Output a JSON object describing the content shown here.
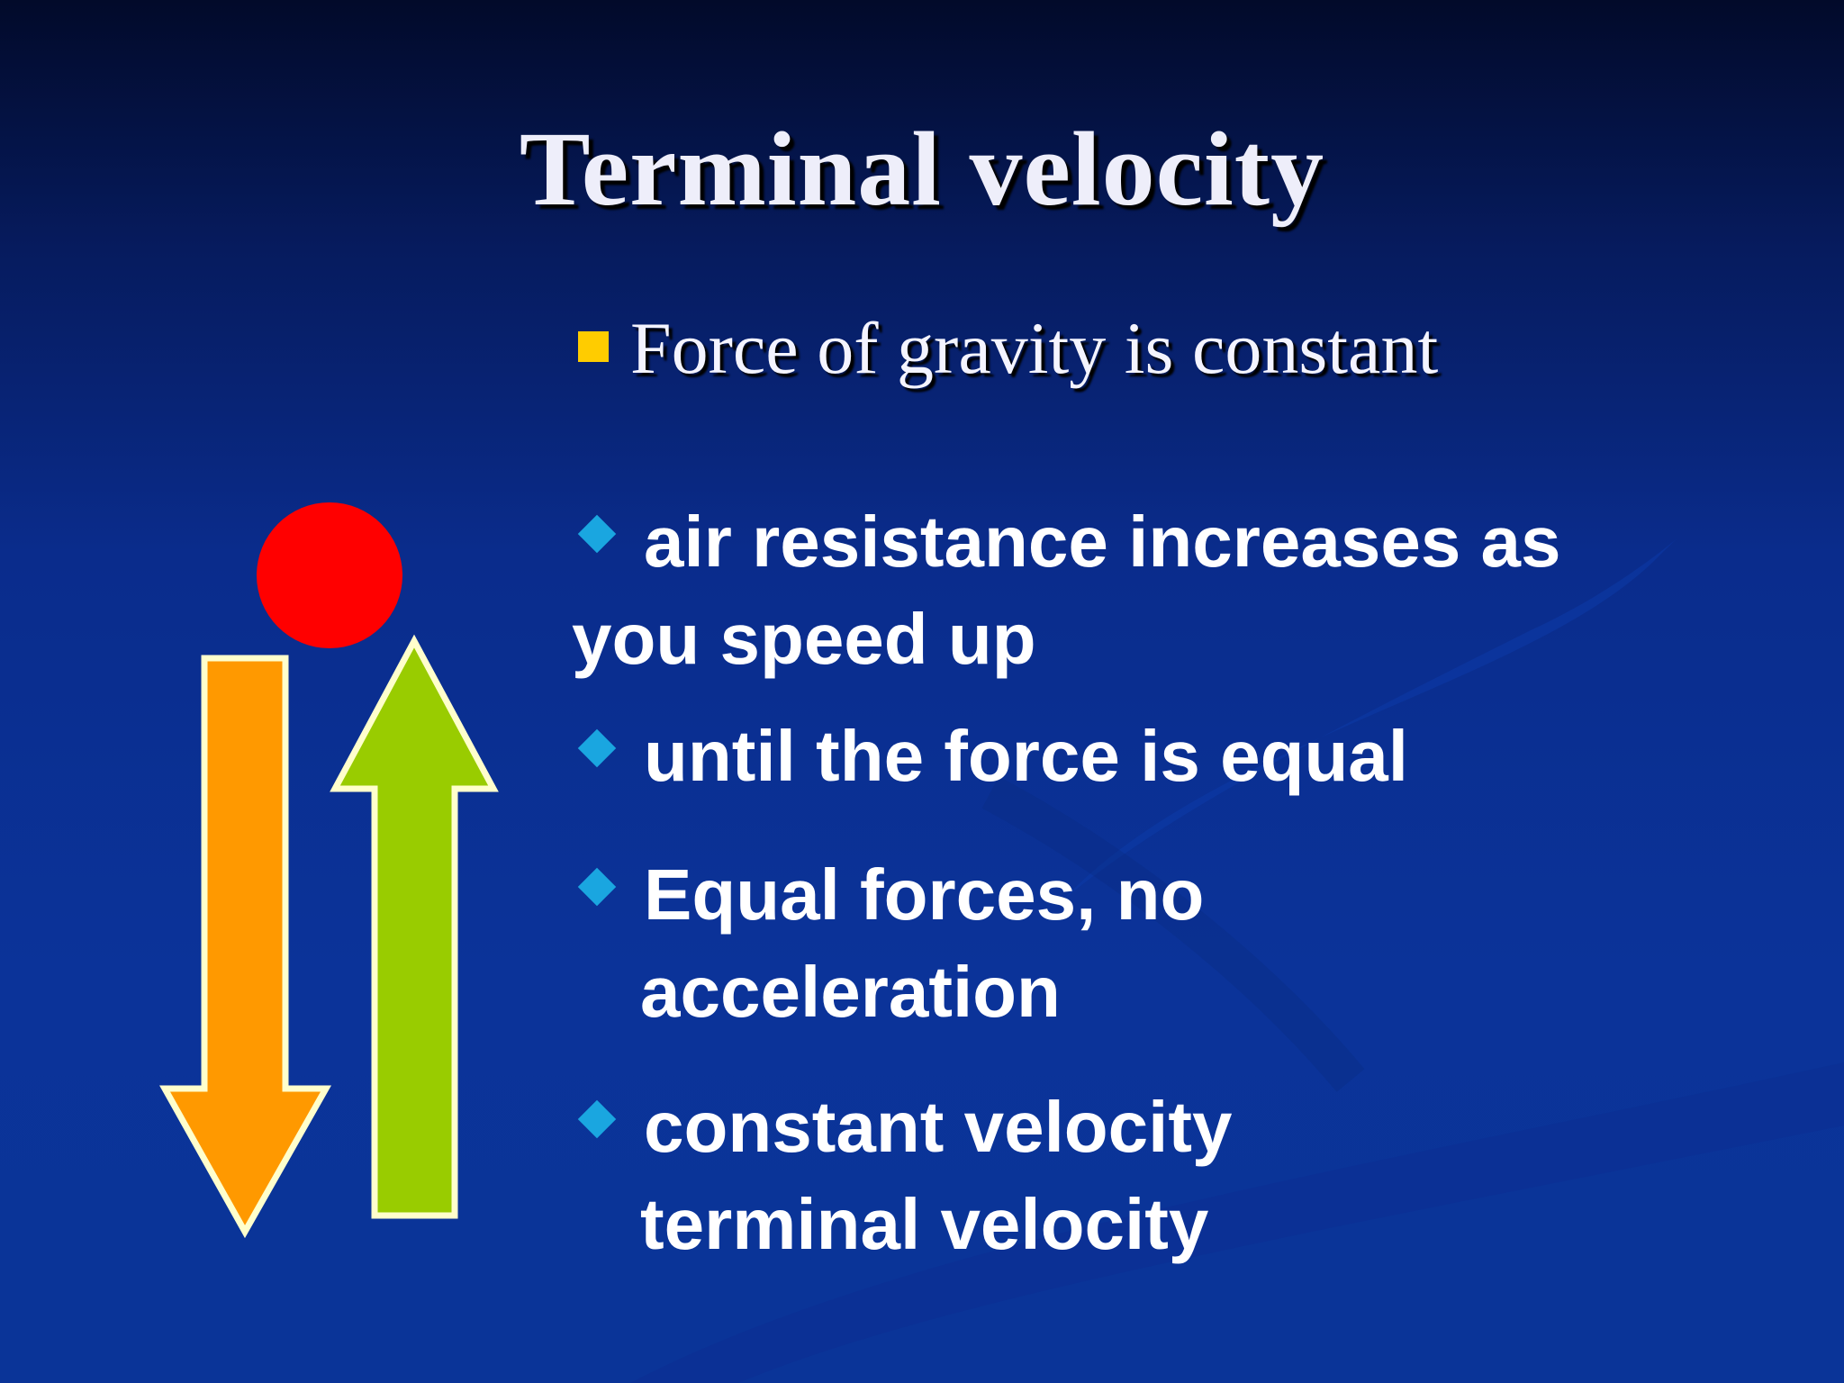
{
  "slide": {
    "title": "Terminal velocity",
    "main_point": "Force of gravity is constant",
    "sub_points": [
      {
        "line1": "air resistance increases as",
        "line2": "you speed up"
      },
      {
        "line1": "until the force is equal"
      },
      {
        "line1": "Equal forces, no",
        "line2": "acceleration"
      },
      {
        "line1": "constant velocity",
        "line2": "terminal velocity"
      }
    ]
  },
  "colors": {
    "background": "#0a2c8c",
    "ball": "#ff0000",
    "down_arrow": "#ff9900",
    "up_arrow": "#99cc00",
    "arrow_outline": "#ffffcc",
    "square_bullet": "#ffcc00",
    "diamond_bullet": "#1aa6e0"
  },
  "icons": {
    "main_bullet": "yellow-square-icon",
    "sub_bullet": "blue-diamond-icon"
  },
  "diagram": {
    "object": "red-ball",
    "downward_force": "orange-down-arrow",
    "upward_force": "green-up-arrow"
  }
}
